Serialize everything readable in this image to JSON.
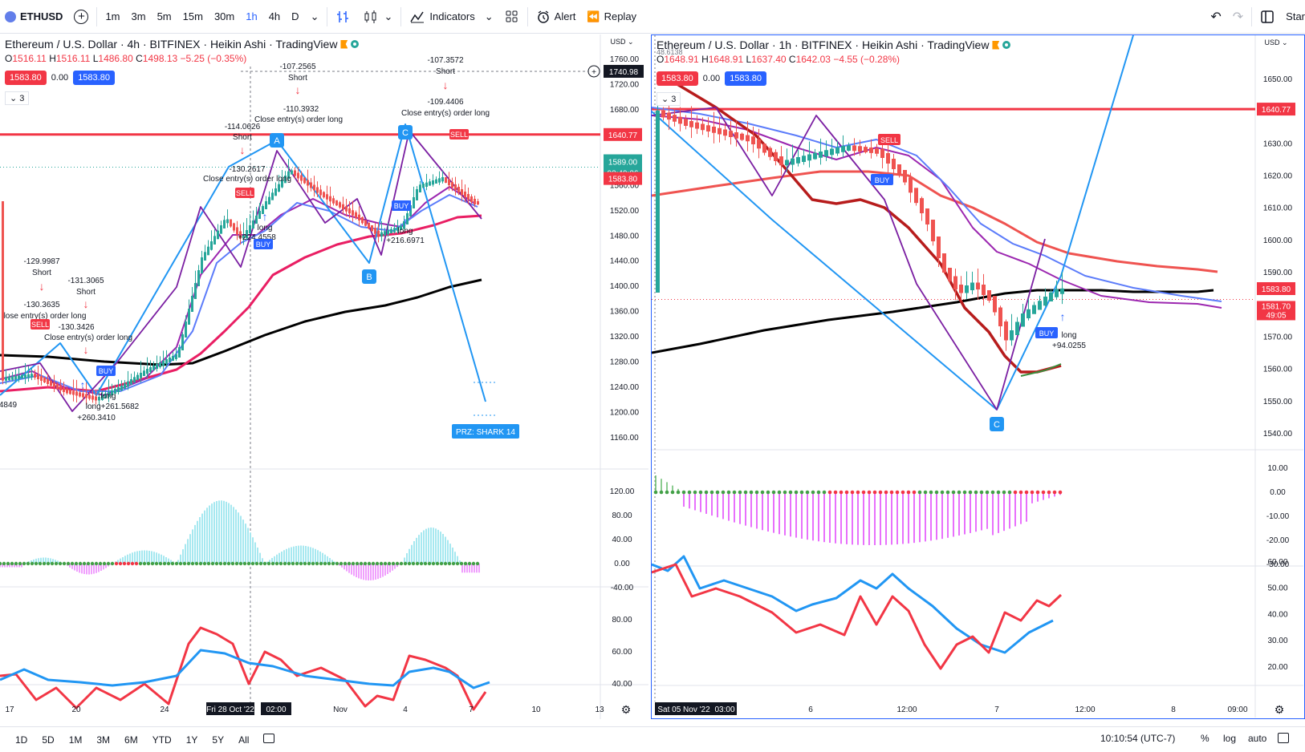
{
  "toolbar": {
    "symbol": "ETHUSD",
    "intervals": [
      "1m",
      "3m",
      "5m",
      "15m",
      "30m",
      "1h",
      "4h",
      "D"
    ],
    "active_interval": "1h",
    "indicators_label": "Indicators",
    "alert_label": "Alert",
    "replay_label": "Replay",
    "star_label": "Star"
  },
  "left_chart": {
    "title": "Ethereum / U.S. Dollar · 4h · BITFINEX · Heikin Ashi · TradingView",
    "ohlc": {
      "o": "1516.11",
      "h": "1516.11",
      "l": "1486.80",
      "c": "1498.13",
      "chg": "−5.25 (−0.35%)"
    },
    "bid": "1583.80",
    "spread": "0.00",
    "ask": "1583.80",
    "count": "3",
    "currency": "USD",
    "price_axis": [
      "1760.00",
      "1720.00",
      "1680.00",
      "1640.00",
      "1600.00",
      "1560.00",
      "1520.00",
      "1480.00",
      "1440.00",
      "1400.00",
      "1360.00",
      "1320.00",
      "1280.00",
      "1240.00",
      "1200.00",
      "1160.00"
    ],
    "osc_axis": [
      "120.00",
      "80.00",
      "40.00",
      "0.00",
      "-40.00"
    ],
    "rsi_axis": [
      "80.00",
      "60.00",
      "40.00"
    ],
    "labels": {
      "crosshair_price": "1740.98",
      "red_line": "1640.77",
      "last_price": "1589.00",
      "countdown": "02:49:06",
      "bid_level": "1583.80",
      "prz": "PRZ: SHARK 14",
      "point_a": "A",
      "point_b": "B",
      "point_c": "C"
    },
    "annotations": [
      {
        "text": "-107.2565"
      },
      {
        "text": "Short"
      },
      {
        "text": "-107.3572"
      },
      {
        "text": "Short"
      },
      {
        "text": "-110.3932"
      },
      {
        "text": "-109.4406"
      },
      {
        "text": "Close entry(s) order long"
      },
      {
        "text": "Close entry(s) order long"
      },
      {
        "text": "-114.0626"
      },
      {
        "text": "Short"
      },
      {
        "text": "-130.2617"
      },
      {
        "text": "Close entry(s) order long"
      },
      {
        "text": "long"
      },
      {
        "text": "+224.4558"
      },
      {
        "text": "long"
      },
      {
        "text": "+216.6971"
      },
      {
        "text": "-129.9987"
      },
      {
        "text": "Short"
      },
      {
        "text": "-131.3065"
      },
      {
        "text": "Short"
      },
      {
        "text": "-130.3635"
      },
      {
        "text": "lose entry(s) order long"
      },
      {
        "text": "-130.3426"
      },
      {
        "text": "Close entry(s) order long"
      },
      {
        "text": "long"
      },
      {
        "text": "long+261.5682"
      },
      {
        "text": "+260.3410"
      },
      {
        "text": "4849"
      },
      {
        "text": "SELL"
      },
      {
        "text": "SELL"
      },
      {
        "text": "BUY"
      },
      {
        "text": "BUY"
      },
      {
        "text": "SELL"
      },
      {
        "text": "BUY"
      }
    ],
    "time_axis": [
      "17",
      "20",
      "24",
      "Fri 28 Oct '22",
      "02:00",
      "Nov",
      "4",
      "7",
      "10",
      "13"
    ]
  },
  "right_chart": {
    "title": "Ethereum / U.S. Dollar · 1h · BITFINEX · Heikin Ashi · TradingView",
    "ohlc": {
      "o": "1648.91",
      "h": "1648.91",
      "l": "1637.40",
      "c": "1642.03",
      "chg": "−4.55 (−0.28%)"
    },
    "bid": "1583.80",
    "spread": "0.00",
    "ask": "1583.80",
    "count": "3",
    "currency": "USD",
    "price_axis": [
      "1650.00",
      "1640.00",
      "1630.00",
      "1620.00",
      "1610.00",
      "1600.00",
      "1590.00",
      "1580.00",
      "1570.00",
      "1560.00",
      "1550.00",
      "1540.00"
    ],
    "osc_axis": [
      "10.00",
      "0.00",
      "-10.00",
      "-20.00",
      "-30.00"
    ],
    "rsi_axis": [
      "60.00",
      "50.00",
      "40.00",
      "30.00",
      "20.00"
    ],
    "labels": {
      "red_line": "1640.77",
      "last_price": "1583.80",
      "price2": "1581.70",
      "countdown": "49:05",
      "point_c": "C",
      "sell": "SELL",
      "buy": "BUY",
      "buy2": "BUY",
      "long": "long",
      "profit": "+94.0255",
      "peek": "48.6138"
    },
    "time_axis": [
      "Sat 05 Nov '22",
      "03:00",
      "6",
      "12:00",
      "7",
      "12:00",
      "8",
      "09:00"
    ]
  },
  "bottom": {
    "ranges": [
      "1D",
      "5D",
      "1M",
      "3M",
      "6M",
      "YTD",
      "1Y",
      "5Y",
      "All"
    ],
    "clock": "10:10:54 (UTC-7)",
    "percent": "%",
    "log": "log",
    "auto": "auto"
  },
  "colors": {
    "accent": "#2962ff",
    "red": "#f23645",
    "green": "#089981",
    "black_ma": "#000000",
    "purple": "#7b1fa2"
  }
}
